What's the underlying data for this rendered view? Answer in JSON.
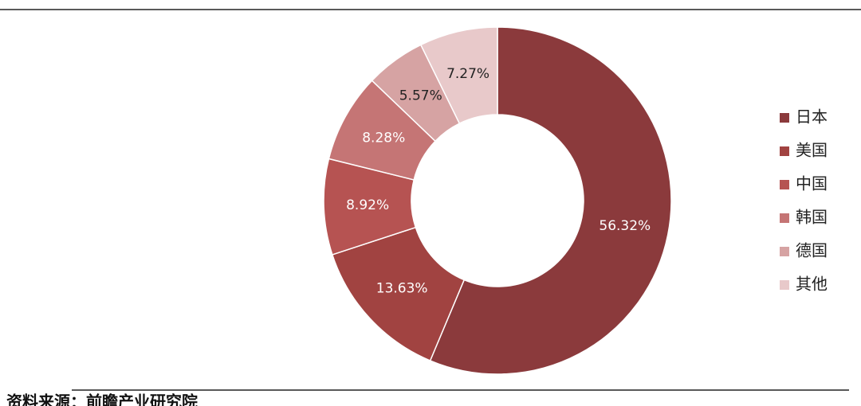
{
  "chart_data": {
    "type": "donut",
    "categories": [
      "日本",
      "美国",
      "中国",
      "韩国",
      "德国",
      "其他"
    ],
    "values": [
      56.32,
      13.63,
      8.92,
      8.28,
      5.57,
      7.27
    ],
    "value_labels": [
      "56.32%",
      "13.63%",
      "8.92%",
      "8.28%",
      "5.57%",
      "7.27%"
    ],
    "colors": [
      "#8b3a3c",
      "#a14341",
      "#b65352",
      "#c57575",
      "#d6a3a3",
      "#e8c9ca"
    ],
    "legend": "right",
    "source": "资料来源：前瞻产业研究院"
  }
}
